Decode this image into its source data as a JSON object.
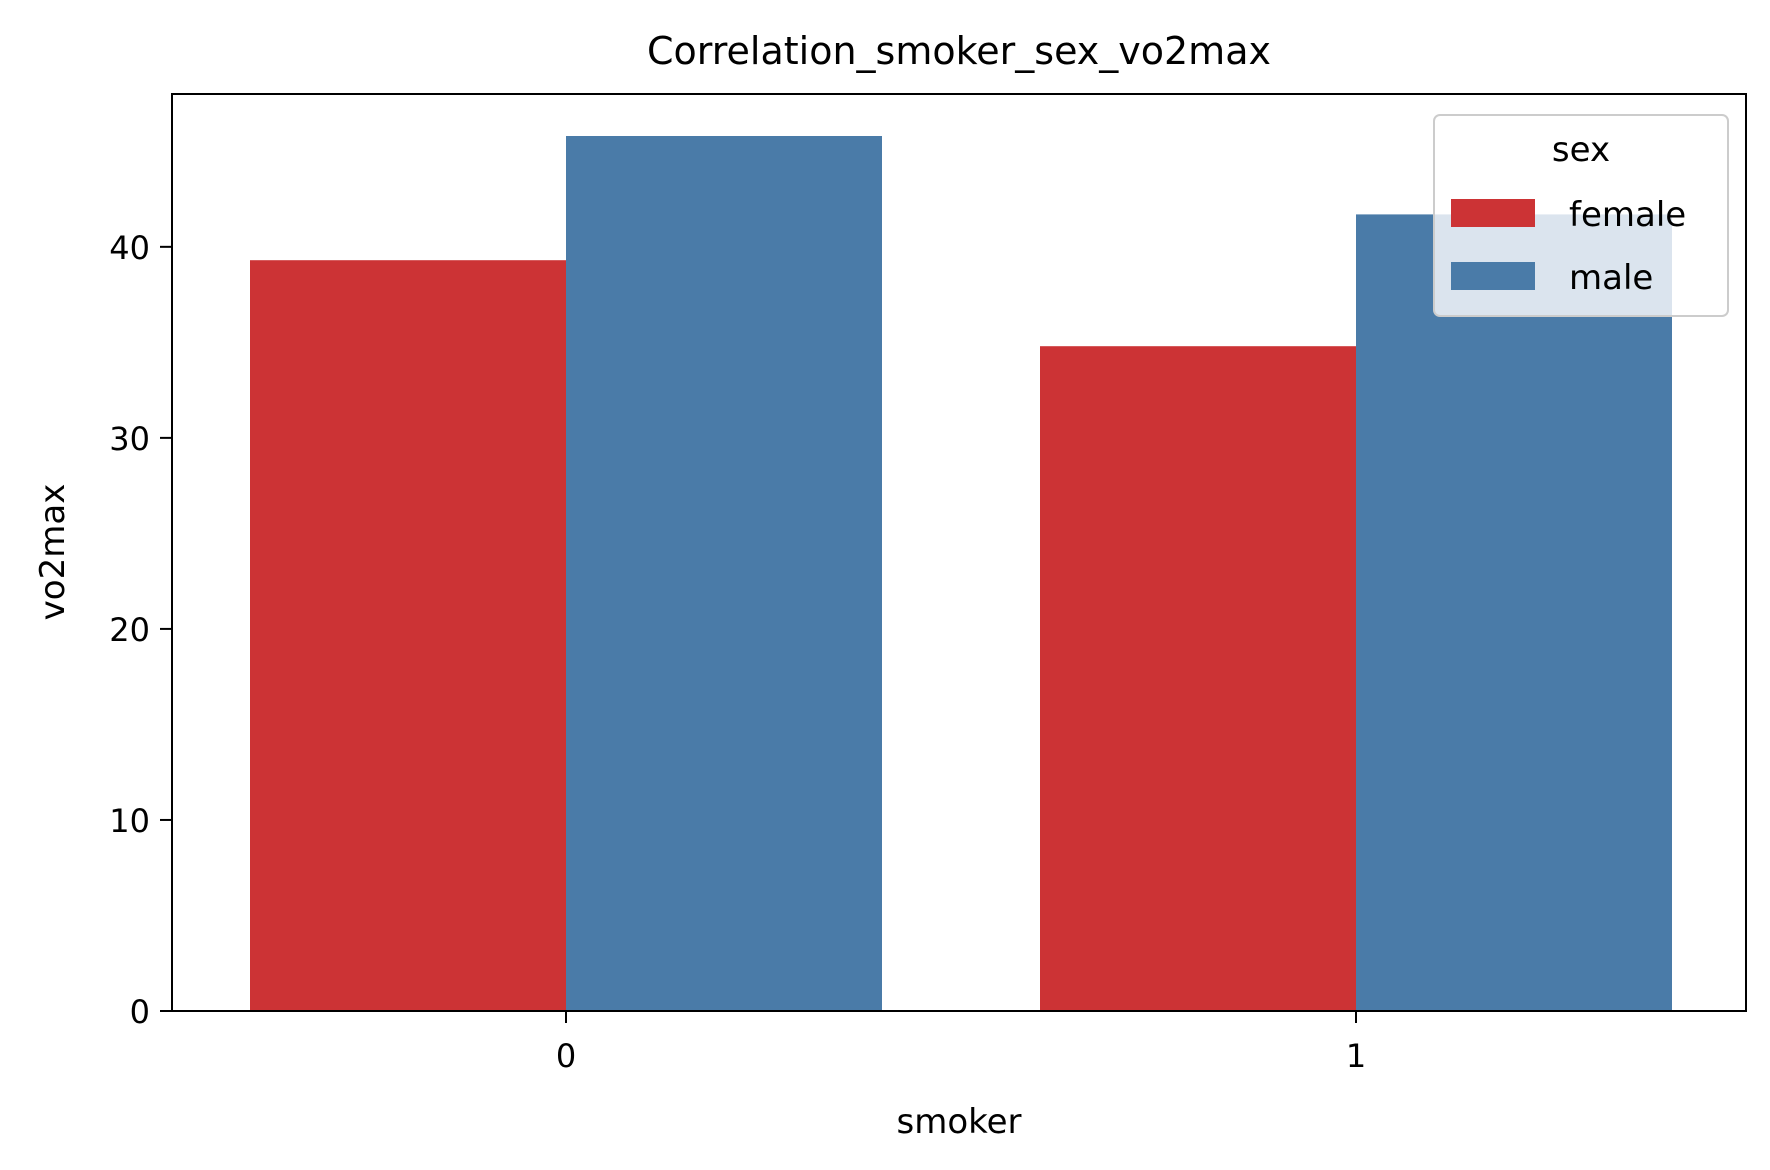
{
  "chart_data": {
    "type": "bar",
    "title": "Correlation_smoker_sex_vo2max",
    "xlabel": "smoker",
    "ylabel": "vo2max",
    "categories": [
      "0",
      "1"
    ],
    "series": [
      {
        "name": "female",
        "color": "#cc3335",
        "values": [
          39.3,
          34.8
        ]
      },
      {
        "name": "male",
        "color": "#4a7ba8",
        "values": [
          45.8,
          41.7
        ]
      }
    ],
    "ylim": [
      0,
      48.0
    ],
    "yticks": [
      0,
      10,
      20,
      30,
      40
    ],
    "ytick_labels": [
      "0",
      "10",
      "20",
      "30",
      "40"
    ],
    "grid": false,
    "legend": {
      "title": "sex",
      "placement": "top-right",
      "entries": [
        "female",
        "male"
      ]
    }
  }
}
